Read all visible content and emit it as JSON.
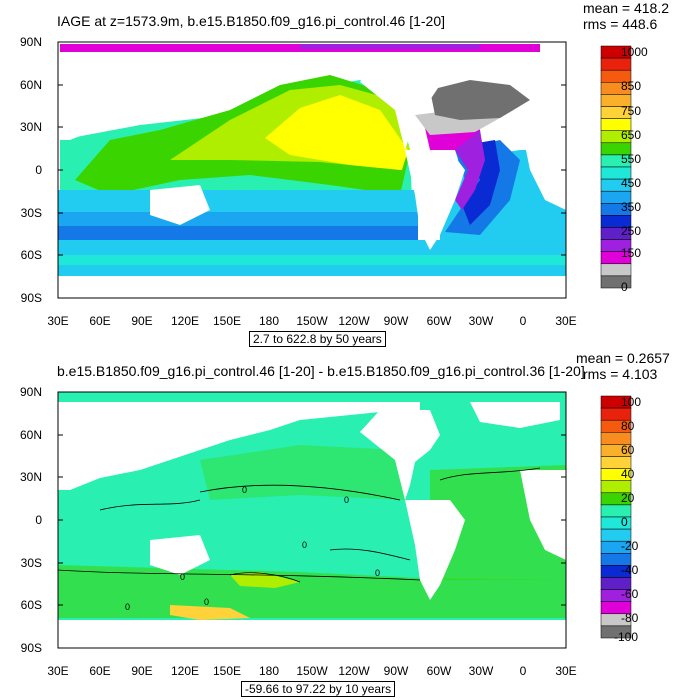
{
  "top_panel": {
    "title": "IAGE at z=1573.9m, b.e15.B1850.f09_g16.pi_control.46 [1-20]",
    "mean": "mean = 418.2",
    "rms": "rms = 448.6",
    "range_label": "2.7 to 622.8 by 50 years",
    "lat_labels": [
      "90N",
      "60N",
      "30N",
      "0",
      "30S",
      "60S",
      "90S"
    ],
    "lon_labels": [
      "30E",
      "60E",
      "90E",
      "120E",
      "150E",
      "180",
      "150W",
      "120W",
      "90W",
      "60W",
      "30W",
      "0",
      "30E"
    ],
    "colorbar_labels": [
      "1000",
      "850",
      "750",
      "650",
      "550",
      "450",
      "350",
      "250",
      "150",
      "0"
    ],
    "colorbar_colors": [
      "#cc0000",
      "#e8220c",
      "#f55a0f",
      "#f98c1e",
      "#fbb02c",
      "#ffd23a",
      "#ffff00",
      "#b0ee00",
      "#3ad400",
      "#29f0b0",
      "#1fe8d8",
      "#22ccf0",
      "#1aa6f0",
      "#1478e6",
      "#0a2bd4",
      "#6020c8",
      "#a020e0",
      "#e000d8",
      "#c8c8c8",
      "#707070"
    ]
  },
  "bottom_panel": {
    "title": "b.e15.B1850.f09_g16.pi_control.46 [1-20] - b.e15.B1850.f09_g16.pi_control.36 [1-20]",
    "mean": "mean = 0.2657",
    "rms": "rms = 4.103",
    "range_label": "-59.66 to 97.22 by 10 years",
    "contour_labels": [
      "0",
      "0",
      "0",
      "0",
      "0",
      "0",
      "0"
    ],
    "lat_labels": [
      "90N",
      "60N",
      "30N",
      "0",
      "30S",
      "60S",
      "90S"
    ],
    "lon_labels": [
      "30E",
      "60E",
      "90E",
      "120E",
      "150E",
      "180",
      "150W",
      "120W",
      "90W",
      "60W",
      "30W",
      "0",
      "30E"
    ],
    "colorbar_labels": [
      "100",
      "80",
      "60",
      "40",
      "20",
      "0",
      "-20",
      "-40",
      "-60",
      "-80",
      "-100"
    ],
    "colorbar_colors": [
      "#cc0000",
      "#e8220c",
      "#f55a0f",
      "#f98c1e",
      "#fbb02c",
      "#ffd23a",
      "#ffff00",
      "#b0ee00",
      "#3ad400",
      "#29f0b0",
      "#1fe8d8",
      "#22ccf0",
      "#1aa6f0",
      "#1478e6",
      "#0a2bd4",
      "#6020c8",
      "#a020e0",
      "#e000d8",
      "#c8c8c8",
      "#707070"
    ]
  }
}
